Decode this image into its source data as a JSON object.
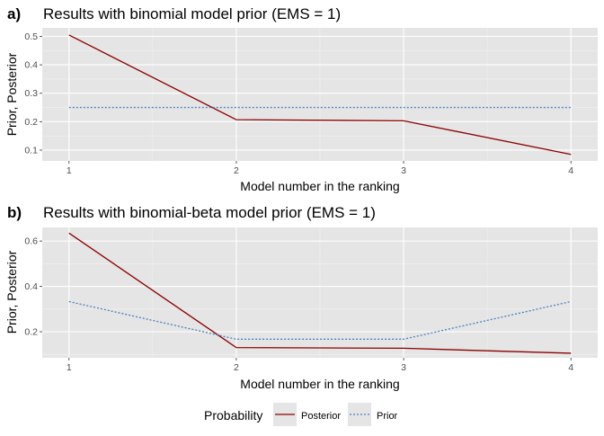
{
  "panels": [
    {
      "tag": "a)",
      "title": "Results with binomial model prior (EMS = 1)"
    },
    {
      "tag": "b)",
      "title": "Results with binomial-beta model prior (EMS = 1)"
    }
  ],
  "legend": {
    "title": "Probability",
    "items": [
      "Posterior",
      "Prior"
    ]
  },
  "colors": {
    "posterior": "#8B0000",
    "prior": "#4A7FC1",
    "panel_bg": "#E5E5E5",
    "grid": "#FFFFFF"
  },
  "chart_data": [
    {
      "type": "line",
      "title": "Results with binomial model prior (EMS = 1)",
      "xlabel": "Model number in the ranking",
      "ylabel": "Prior, Posterior",
      "x": [
        1,
        2,
        3,
        4
      ],
      "x_ticks": [
        "1",
        "2",
        "3",
        "4"
      ],
      "y_ticks": [
        "0.1",
        "0.2",
        "0.3",
        "0.4",
        "0.5"
      ],
      "y_tick_values": [
        0.1,
        0.2,
        0.3,
        0.4,
        0.5
      ],
      "xlim": [
        0.84,
        4.16
      ],
      "ylim": [
        0.062,
        0.53
      ],
      "series": [
        {
          "name": "Posterior",
          "values": [
            0.505,
            0.207,
            0.203,
            0.085
          ],
          "style": "solid"
        },
        {
          "name": "Prior",
          "values": [
            0.25,
            0.25,
            0.25,
            0.25
          ],
          "style": "dotted"
        }
      ],
      "grid": true,
      "legend_position": "bottom"
    },
    {
      "type": "line",
      "title": "Results with binomial-beta model prior (EMS = 1)",
      "xlabel": "Model number in the ranking",
      "ylabel": "Prior, Posterior",
      "x": [
        1,
        2,
        3,
        4
      ],
      "x_ticks": [
        "1",
        "2",
        "3",
        "4"
      ],
      "y_ticks": [
        "0.2",
        "0.4",
        "0.6"
      ],
      "y_tick_values": [
        0.2,
        0.4,
        0.6
      ],
      "xlim": [
        0.84,
        4.16
      ],
      "ylim": [
        0.085,
        0.66
      ],
      "series": [
        {
          "name": "Posterior",
          "values": [
            0.635,
            0.13,
            0.127,
            0.105
          ],
          "style": "solid"
        },
        {
          "name": "Prior",
          "values": [
            0.333,
            0.167,
            0.167,
            0.333
          ],
          "style": "dotted"
        }
      ],
      "grid": true,
      "legend_position": "bottom"
    }
  ]
}
